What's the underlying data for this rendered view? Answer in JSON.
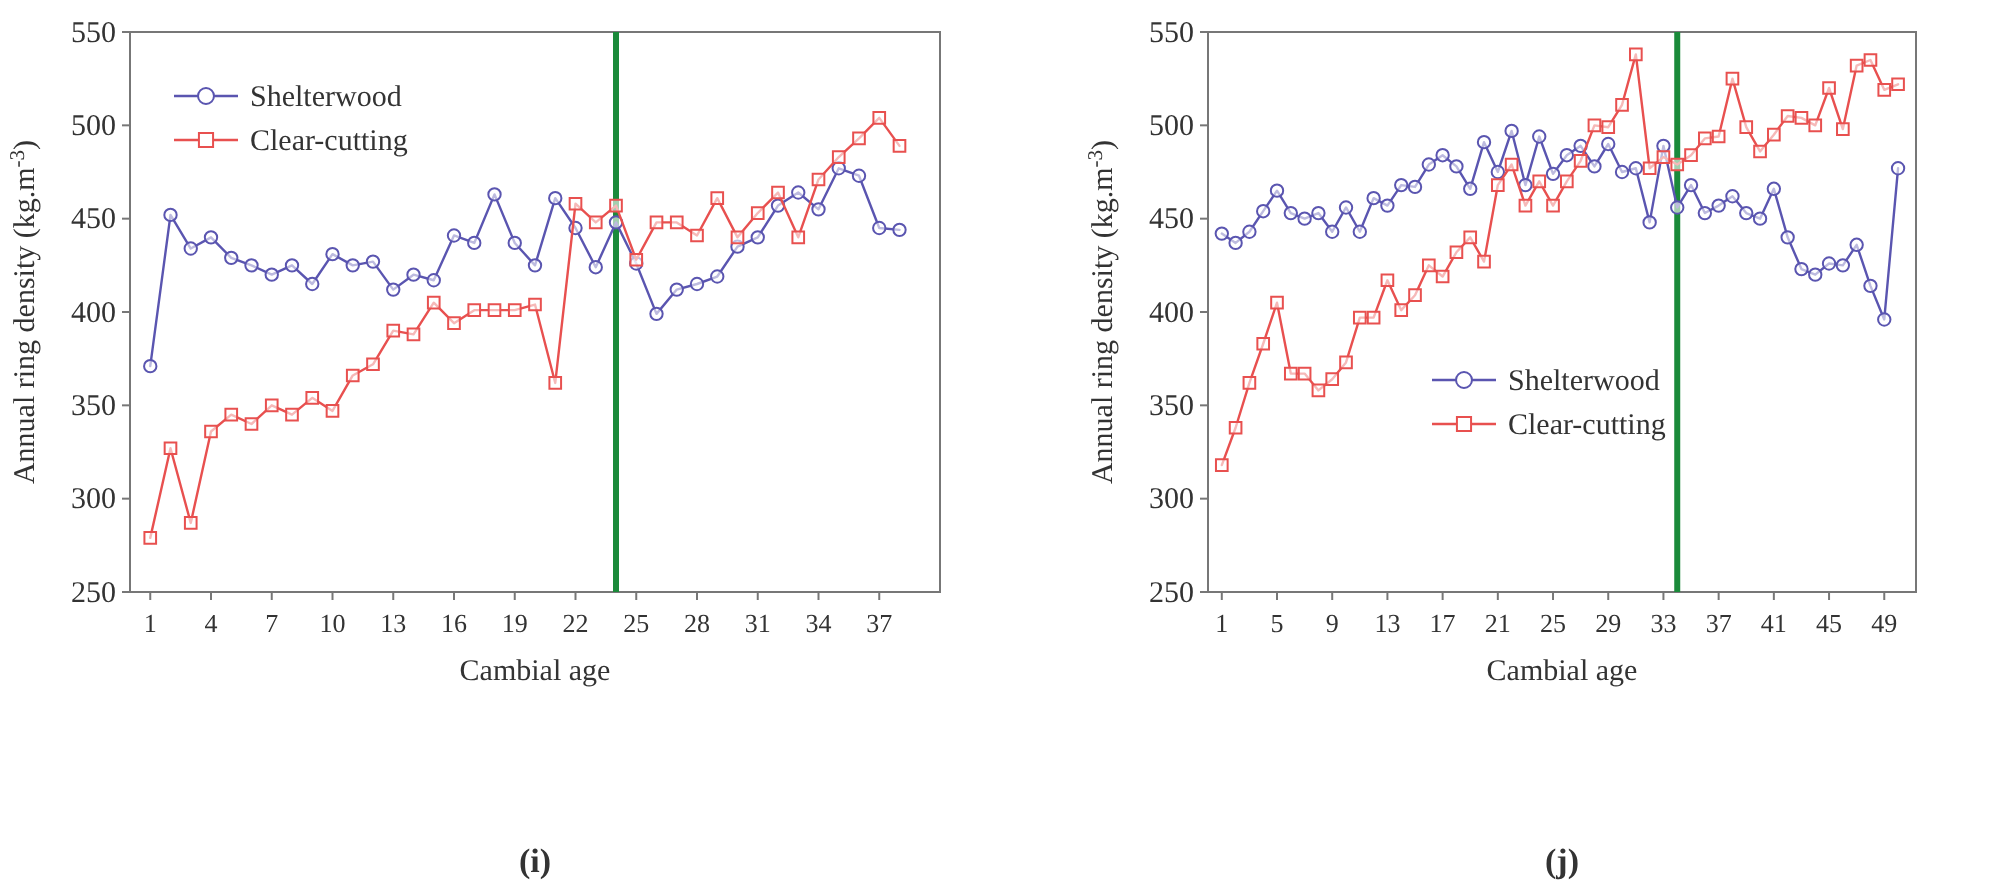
{
  "chart_data": [
    {
      "type": "line",
      "xlabel": "Cambial age",
      "ylabel": "Annual ring density (kg.m$^{-3}$)",
      "annotations": [
        "(i)"
      ],
      "legend": "top left",
      "line_style": "solid",
      "grid": false,
      "xlim": [
        0,
        40
      ],
      "xticks": [
        1,
        4,
        7,
        10,
        13,
        16,
        19,
        22,
        25,
        28,
        31,
        34,
        37
      ],
      "ylim": [
        250,
        550
      ],
      "yticks": [
        250,
        300,
        350,
        400,
        450,
        500,
        550
      ],
      "ref_lines": [
        {
          "axis": "x",
          "value": 24,
          "color": "#1a8a3a"
        }
      ],
      "series": [
        {
          "name": "Shelterwood",
          "color": "#5a55b0",
          "marker": "circle",
          "x": [
            1,
            2,
            3,
            4,
            5,
            6,
            7,
            8,
            9,
            10,
            11,
            12,
            13,
            14,
            15,
            16,
            17,
            18,
            19,
            20,
            21,
            22,
            23,
            24,
            25,
            26,
            27,
            28,
            29,
            30,
            31,
            32,
            33,
            34,
            35,
            36,
            37,
            38
          ],
          "values": [
            371,
            452,
            434,
            440,
            429,
            425,
            420,
            425,
            415,
            431,
            425,
            427,
            412,
            420,
            417,
            441,
            437,
            463,
            437,
            425,
            461,
            445,
            424,
            448,
            426,
            399,
            412,
            415,
            419,
            435,
            440,
            457,
            464,
            455,
            477,
            473,
            445,
            444
          ]
        },
        {
          "name": "Clear-cutting",
          "color": "#e8504f",
          "marker": "square",
          "x": [
            1,
            2,
            3,
            4,
            5,
            6,
            7,
            8,
            9,
            10,
            11,
            12,
            13,
            14,
            15,
            16,
            17,
            18,
            19,
            20,
            21,
            22,
            23,
            24,
            25,
            26,
            27,
            28,
            29,
            30,
            31,
            32,
            33,
            34,
            35,
            36,
            37,
            38
          ],
          "values": [
            279,
            327,
            287,
            336,
            345,
            340,
            350,
            345,
            354,
            347,
            366,
            372,
            390,
            388,
            405,
            394,
            401,
            401,
            401,
            404,
            362,
            458,
            448,
            457,
            428,
            448,
            448,
            441,
            461,
            440,
            453,
            464,
            440,
            471,
            483,
            493,
            504,
            489
          ]
        }
      ]
    },
    {
      "type": "line",
      "xlabel": "Cambial age",
      "ylabel": "Annual ring density (kg.m$^{-3}$)",
      "annotations": [
        "(j)"
      ],
      "legend": "left",
      "line_style": "solid",
      "grid": false,
      "xlim": [
        0,
        51.3
      ],
      "xticks": [
        1,
        5,
        9,
        13,
        17,
        21,
        25,
        29,
        33,
        37,
        41,
        45,
        49
      ],
      "ylim": [
        250,
        550
      ],
      "yticks": [
        250,
        300,
        350,
        400,
        450,
        500,
        550
      ],
      "ref_lines": [
        {
          "axis": "x",
          "value": 34,
          "color": "#1a8a3a"
        }
      ],
      "series": [
        {
          "name": "Shelterwood",
          "color": "#5a55b0",
          "marker": "circle",
          "x": [
            1,
            2,
            3,
            4,
            5,
            6,
            7,
            8,
            9,
            10,
            11,
            12,
            13,
            14,
            15,
            16,
            17,
            18,
            19,
            20,
            21,
            22,
            23,
            24,
            25,
            26,
            27,
            28,
            29,
            30,
            31,
            32,
            33,
            34,
            35,
            36,
            37,
            38,
            39,
            40,
            41,
            42,
            43,
            44,
            45,
            46,
            47,
            48,
            49,
            50
          ],
          "values": [
            442,
            437,
            443,
            454,
            465,
            453,
            450,
            453,
            443,
            456,
            443,
            461,
            457,
            468,
            467,
            479,
            484,
            478,
            466,
            491,
            475,
            497,
            468,
            494,
            474,
            484,
            489,
            478,
            490,
            475,
            477,
            448,
            489,
            456,
            468,
            453,
            457,
            462,
            453,
            450,
            466,
            440,
            423,
            420,
            426,
            425,
            436,
            414,
            396,
            477
          ]
        },
        {
          "name": "Clear-cutting",
          "color": "#e8504f",
          "marker": "square",
          "x": [
            1,
            2,
            3,
            4,
            5,
            6,
            7,
            8,
            9,
            10,
            11,
            12,
            13,
            14,
            15,
            16,
            17,
            18,
            19,
            20,
            21,
            22,
            23,
            24,
            25,
            26,
            27,
            28,
            29,
            30,
            31,
            32,
            33,
            34,
            35,
            36,
            37,
            38,
            39,
            40,
            41,
            42,
            43,
            44,
            45,
            46,
            47,
            48,
            49,
            50
          ],
          "values": [
            318,
            338,
            362,
            383,
            405,
            367,
            367,
            358,
            364,
            373,
            397,
            397,
            417,
            401,
            409,
            425,
            419,
            432,
            440,
            427,
            468,
            479,
            457,
            470,
            457,
            470,
            481,
            500,
            499,
            511,
            538,
            477,
            483,
            479,
            484,
            493,
            494,
            525,
            499,
            486,
            495,
            505,
            504,
            500,
            520,
            498,
            532,
            535,
            519,
            522
          ]
        }
      ]
    }
  ]
}
